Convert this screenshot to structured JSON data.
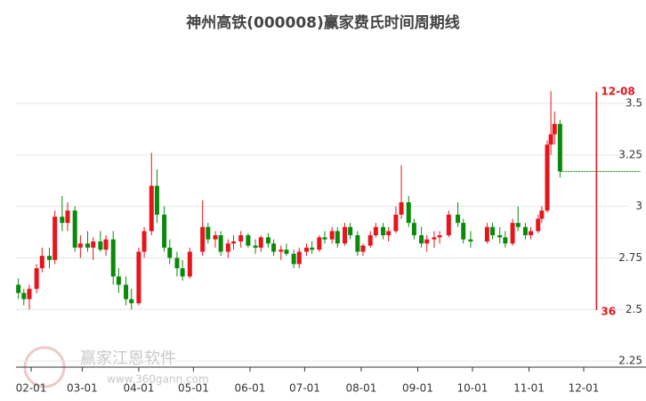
{
  "chart_data": {
    "type": "candlestick",
    "title": "神州高铁(000008)赢家费氏时间周期线",
    "watermark": "赢家江恩软件",
    "watermark_url": "www.360gann.com",
    "ylim": [
      2.22,
      3.6
    ],
    "yticks": [
      2.25,
      2.5,
      2.75,
      3,
      3.25,
      3.5
    ],
    "xticks": [
      "02-01",
      "03-01",
      "04-01",
      "05-01",
      "06-01",
      "07-01",
      "08-01",
      "09-01",
      "10-01",
      "11-01",
      "12-01"
    ],
    "up_color": "#e8141c",
    "down_color": "#0a8a0a",
    "grid": true,
    "cycle": {
      "date": "12-08",
      "days": 36,
      "color": "#e8141c"
    },
    "x": [
      "01-25",
      "01-28",
      "01-31",
      "02-04",
      "02-07",
      "02-11",
      "02-14",
      "02-18",
      "02-21",
      "02-25",
      "02-28",
      "03-04",
      "03-07",
      "03-11",
      "03-14",
      "03-18",
      "03-21",
      "03-25",
      "03-28",
      "04-01",
      "04-04",
      "04-08",
      "04-11",
      "04-15",
      "04-18",
      "04-22",
      "04-25",
      "04-29",
      "05-06",
      "05-09",
      "05-13",
      "05-16",
      "05-20",
      "05-23",
      "05-27",
      "05-31",
      "06-04",
      "06-07",
      "06-11",
      "06-14",
      "06-18",
      "06-21",
      "06-25",
      "06-28",
      "07-02",
      "07-05",
      "07-09",
      "07-12",
      "07-16",
      "07-19",
      "07-23",
      "07-26",
      "07-30",
      "08-02",
      "08-06",
      "08-09",
      "08-13",
      "08-16",
      "08-20",
      "08-23",
      "08-27",
      "08-30",
      "09-03",
      "09-06",
      "09-10",
      "09-13",
      "09-18",
      "09-23",
      "09-26",
      "09-30",
      "10-09",
      "10-12",
      "10-16",
      "10-19",
      "10-23",
      "10-26",
      "10-30",
      "11-02",
      "11-06",
      "11-08",
      "11-11",
      "11-13",
      "11-15",
      "11-18"
    ],
    "open": [
      2.62,
      2.58,
      2.55,
      2.6,
      2.7,
      2.76,
      2.74,
      2.95,
      2.92,
      2.98,
      2.8,
      2.82,
      2.8,
      2.83,
      2.79,
      2.84,
      2.66,
      2.62,
      2.55,
      2.53,
      2.78,
      2.88,
      3.1,
      2.96,
      2.8,
      2.75,
      2.7,
      2.66,
      2.78,
      2.9,
      2.84,
      2.86,
      2.78,
      2.82,
      2.83,
      2.86,
      2.81,
      2.8,
      2.85,
      2.82,
      2.78,
      2.79,
      2.77,
      2.72,
      2.78,
      2.8,
      2.79,
      2.85,
      2.84,
      2.88,
      2.82,
      2.9,
      2.86,
      2.78,
      2.81,
      2.86,
      2.9,
      2.86,
      2.88,
      2.96,
      3.02,
      2.92,
      2.86,
      2.82,
      2.84,
      2.85,
      2.86,
      2.96,
      2.92,
      2.84,
      2.83,
      2.9,
      2.86,
      2.85,
      2.82,
      2.92,
      2.9,
      2.86,
      2.88,
      2.94,
      2.98,
      3.3,
      3.35,
      3.4
    ],
    "high": [
      2.65,
      2.6,
      2.62,
      2.72,
      2.8,
      2.8,
      2.98,
      3.05,
      3.02,
      3.0,
      2.86,
      2.88,
      2.85,
      2.88,
      2.86,
      2.88,
      2.7,
      2.66,
      2.6,
      2.8,
      2.9,
      3.26,
      3.18,
      3.0,
      2.84,
      2.78,
      2.74,
      2.8,
      3.03,
      2.92,
      2.88,
      2.88,
      2.84,
      2.86,
      2.88,
      2.87,
      2.84,
      2.86,
      2.87,
      2.84,
      2.81,
      2.82,
      2.79,
      2.8,
      2.82,
      2.83,
      2.86,
      2.88,
      2.9,
      2.9,
      2.92,
      2.92,
      2.88,
      2.82,
      2.88,
      2.92,
      2.92,
      2.9,
      3.0,
      3.2,
      3.05,
      2.94,
      2.9,
      2.86,
      2.88,
      2.88,
      2.98,
      3.02,
      2.94,
      2.88,
      2.92,
      2.92,
      2.9,
      2.88,
      2.94,
      3.0,
      2.92,
      2.9,
      2.96,
      3.0,
      3.32,
      3.56,
      3.46,
      3.42
    ],
    "low": [
      2.55,
      2.52,
      2.5,
      2.58,
      2.68,
      2.7,
      2.72,
      2.88,
      2.88,
      2.78,
      2.75,
      2.78,
      2.74,
      2.78,
      2.76,
      2.62,
      2.58,
      2.52,
      2.5,
      2.52,
      2.75,
      2.86,
      2.92,
      2.78,
      2.72,
      2.66,
      2.64,
      2.65,
      2.76,
      2.82,
      2.8,
      2.76,
      2.75,
      2.79,
      2.8,
      2.8,
      2.77,
      2.78,
      2.8,
      2.76,
      2.74,
      2.76,
      2.7,
      2.7,
      2.76,
      2.77,
      2.78,
      2.82,
      2.82,
      2.8,
      2.81,
      2.84,
      2.76,
      2.76,
      2.8,
      2.85,
      2.84,
      2.83,
      2.87,
      2.94,
      2.9,
      2.84,
      2.8,
      2.78,
      2.8,
      2.82,
      2.85,
      2.9,
      2.82,
      2.8,
      2.82,
      2.84,
      2.82,
      2.8,
      2.81,
      2.88,
      2.84,
      2.84,
      2.87,
      2.92,
      2.97,
      3.25,
      3.3,
      3.14
    ],
    "close": [
      2.58,
      2.55,
      2.6,
      2.7,
      2.76,
      2.74,
      2.95,
      2.92,
      2.98,
      2.8,
      2.82,
      2.8,
      2.83,
      2.79,
      2.84,
      2.66,
      2.62,
      2.55,
      2.53,
      2.78,
      2.88,
      3.1,
      2.96,
      2.8,
      2.75,
      2.7,
      2.66,
      2.78,
      2.9,
      2.84,
      2.86,
      2.78,
      2.82,
      2.83,
      2.86,
      2.81,
      2.8,
      2.85,
      2.82,
      2.78,
      2.79,
      2.77,
      2.72,
      2.78,
      2.8,
      2.79,
      2.85,
      2.84,
      2.88,
      2.82,
      2.9,
      2.86,
      2.78,
      2.81,
      2.86,
      2.9,
      2.86,
      2.88,
      2.96,
      3.02,
      2.92,
      2.86,
      2.82,
      2.84,
      2.85,
      2.86,
      2.96,
      2.92,
      2.84,
      2.83,
      2.9,
      2.86,
      2.85,
      2.82,
      2.92,
      2.9,
      2.86,
      2.88,
      2.94,
      2.98,
      3.3,
      3.35,
      3.4,
      3.17
    ]
  }
}
